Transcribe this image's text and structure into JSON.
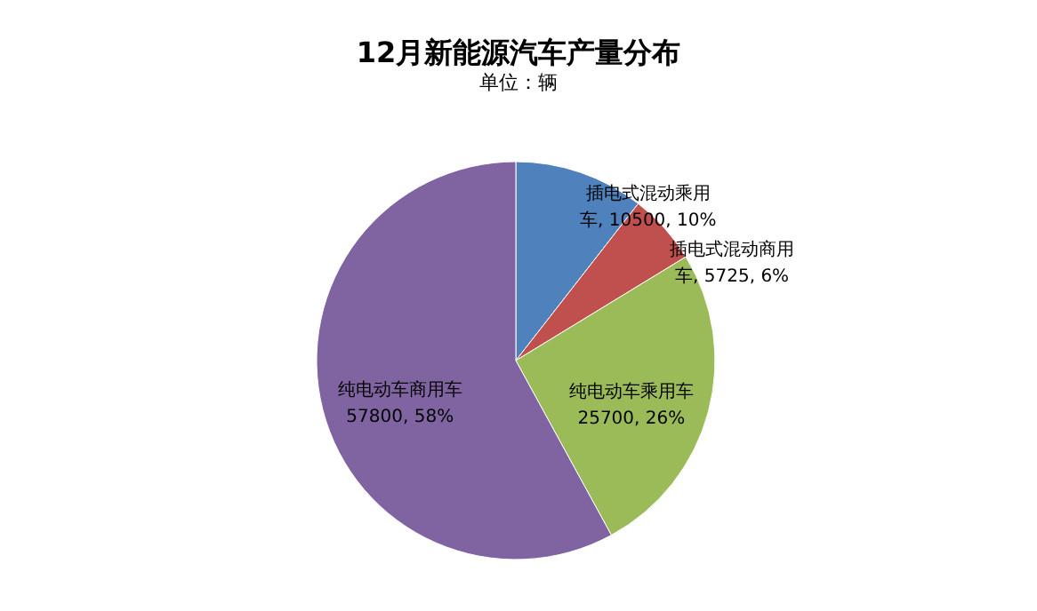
{
  "chart_data": {
    "type": "pie",
    "title": "12月新能源汽车产量分布",
    "subtitle": "单位：辆",
    "categories": [
      "插电式混动乘用车",
      "插电式混动商用车",
      "纯电动车乘用车",
      "纯电动车商用车"
    ],
    "values": [
      10500,
      5725,
      25700,
      57800
    ],
    "value_labels": [
      "10500, 10%",
      "5725, 6%",
      "25700, 26%",
      "57800, 58%"
    ],
    "colors": [
      "#4f81bd",
      "#c0504d",
      "#9bbb59",
      "#8064a2"
    ]
  }
}
